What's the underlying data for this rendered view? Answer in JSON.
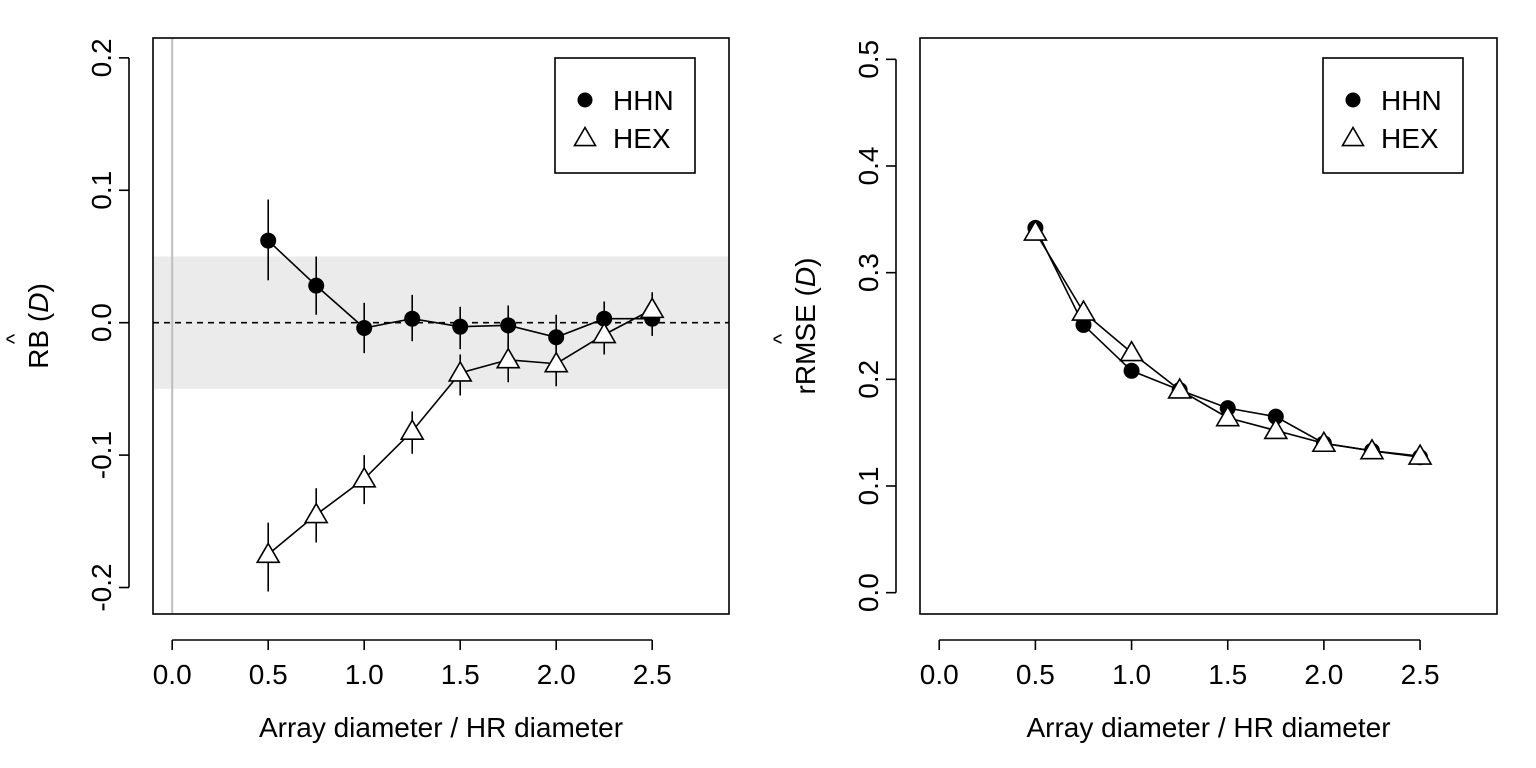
{
  "chart_data": [
    {
      "type": "line",
      "xlabel": "Array diameter / HR diameter",
      "ylabel": "RB",
      "ylabel_symbol": "D",
      "ylabel_hat": "^",
      "xlim": [
        -0.1,
        2.9
      ],
      "ylim": [
        -0.22,
        0.215
      ],
      "x_ticks": [
        "0.0",
        "0.5",
        "1.0",
        "1.5",
        "2.0",
        "2.5"
      ],
      "y_ticks": [
        "-0.2",
        "-0.1",
        "0.0",
        "0.1",
        "0.2"
      ],
      "reference_band": [
        -0.05,
        0.05
      ],
      "reference_line_y": 0,
      "reference_line_x": 0,
      "legend_position": "top-right",
      "grid": false,
      "series": [
        {
          "name": "HHN",
          "marker": "filled-circle",
          "x": [
            0.5,
            0.75,
            1.0,
            1.25,
            1.5,
            1.75,
            2.0,
            2.25,
            2.5
          ],
          "y": [
            0.062,
            0.028,
            -0.004,
            0.003,
            -0.003,
            -0.002,
            -0.011,
            0.003,
            0.003
          ],
          "err_low": [
            0.032,
            0.006,
            -0.023,
            -0.014,
            -0.02,
            -0.019,
            -0.028,
            -0.011,
            -0.01
          ],
          "err_high": [
            0.093,
            0.05,
            0.015,
            0.021,
            0.012,
            0.013,
            0.006,
            0.016,
            0.016
          ]
        },
        {
          "name": "HEX",
          "marker": "open-triangle",
          "x": [
            0.5,
            0.75,
            1.0,
            1.25,
            1.5,
            1.75,
            2.0,
            2.25,
            2.5
          ],
          "y": [
            -0.175,
            -0.145,
            -0.118,
            -0.082,
            -0.038,
            -0.028,
            -0.031,
            -0.009,
            0.01
          ],
          "err_low": [
            -0.203,
            -0.166,
            -0.137,
            -0.099,
            -0.055,
            -0.045,
            -0.048,
            -0.024,
            -0.004
          ],
          "err_high": [
            -0.151,
            -0.125,
            -0.1,
            -0.067,
            -0.024,
            -0.014,
            -0.017,
            0.005,
            0.023
          ]
        }
      ]
    },
    {
      "type": "line",
      "xlabel": "Array diameter / HR diameter",
      "ylabel": "rRMSE",
      "ylabel_symbol": "D",
      "ylabel_hat": "^",
      "xlim": [
        -0.1,
        2.9
      ],
      "ylim": [
        -0.02,
        0.52
      ],
      "x_ticks": [
        "0.0",
        "0.5",
        "1.0",
        "1.5",
        "2.0",
        "2.5"
      ],
      "y_ticks": [
        "0.0",
        "0.1",
        "0.2",
        "0.3",
        "0.4",
        "0.5"
      ],
      "legend_position": "top-right",
      "grid": false,
      "series": [
        {
          "name": "HHN",
          "marker": "filled-circle",
          "x": [
            0.5,
            0.75,
            1.0,
            1.25,
            1.5,
            1.75,
            2.0,
            2.25,
            2.5
          ],
          "y": [
            0.342,
            0.251,
            0.208,
            0.19,
            0.173,
            0.165,
            0.14,
            0.133,
            0.127
          ]
        },
        {
          "name": "HEX",
          "marker": "open-triangle",
          "x": [
            0.5,
            0.75,
            1.0,
            1.25,
            1.5,
            1.75,
            2.0,
            2.25,
            2.5
          ],
          "y": [
            0.338,
            0.263,
            0.225,
            0.19,
            0.164,
            0.152,
            0.14,
            0.133,
            0.128
          ]
        }
      ]
    }
  ]
}
